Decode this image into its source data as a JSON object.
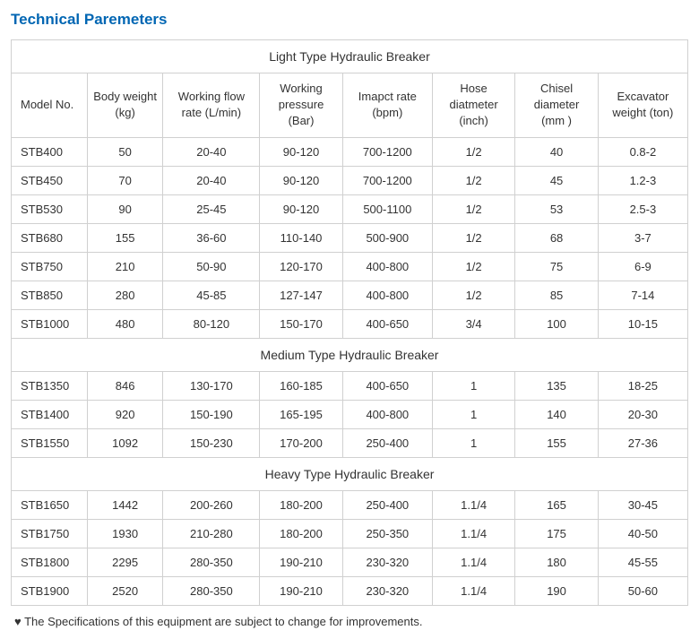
{
  "title": "Technical Paremeters",
  "table": {
    "columns": [
      "Model No.",
      "Body weight (kg)",
      "Working flow rate (L/min)",
      "Working pressure (Bar)",
      "Imapct rate (bpm)",
      "Hose diatmeter (inch)",
      "Chisel diameter (mm )",
      "Excavator weight (ton)"
    ],
    "sections": [
      {
        "header": "Light Type Hydraulic Breaker",
        "rows": [
          [
            "STB400",
            "50",
            "20-40",
            "90-120",
            "700-1200",
            "1/2",
            "40",
            "0.8-2"
          ],
          [
            "STB450",
            "70",
            "20-40",
            "90-120",
            "700-1200",
            "1/2",
            "45",
            "1.2-3"
          ],
          [
            "STB530",
            "90",
            "25-45",
            "90-120",
            "500-1100",
            "1/2",
            "53",
            "2.5-3"
          ],
          [
            "STB680",
            "155",
            "36-60",
            "110-140",
            "500-900",
            "1/2",
            "68",
            "3-7"
          ],
          [
            "STB750",
            "210",
            "50-90",
            "120-170",
            "400-800",
            "1/2",
            "75",
            "6-9"
          ],
          [
            "STB850",
            "280",
            "45-85",
            "127-147",
            "400-800",
            "1/2",
            "85",
            "7-14"
          ],
          [
            "STB1000",
            "480",
            "80-120",
            "150-170",
            "400-650",
            "3/4",
            "100",
            "10-15"
          ]
        ]
      },
      {
        "header": "Medium Type Hydraulic Breaker",
        "rows": [
          [
            "STB1350",
            "846",
            "130-170",
            "160-185",
            "400-650",
            "1",
            "135",
            "18-25"
          ],
          [
            "STB1400",
            "920",
            "150-190",
            "165-195",
            "400-800",
            "1",
            "140",
            "20-30"
          ],
          [
            "STB1550",
            "1092",
            "150-230",
            "170-200",
            "250-400",
            "1",
            "155",
            "27-36"
          ]
        ]
      },
      {
        "header": "Heavy Type Hydraulic Breaker",
        "rows": [
          [
            "STB1650",
            "1442",
            "200-260",
            "180-200",
            "250-400",
            "1.1/4",
            "165",
            "30-45"
          ],
          [
            "STB1750",
            "1930",
            "210-280",
            "180-200",
            "250-350",
            "1.1/4",
            "175",
            "40-50"
          ],
          [
            "STB1800",
            "2295",
            "280-350",
            "190-210",
            "230-320",
            "1.1/4",
            "180",
            "45-55"
          ],
          [
            "STB1900",
            "2520",
            "280-350",
            "190-210",
            "230-320",
            "1.1/4",
            "190",
            "50-60"
          ]
        ]
      }
    ]
  },
  "footnote": "♥ The Specifications of this equipment are subject to change for improvements.",
  "colors": {
    "title": "#0066b3",
    "border": "#d0d0d0",
    "text": "#333333",
    "background": "#ffffff"
  }
}
